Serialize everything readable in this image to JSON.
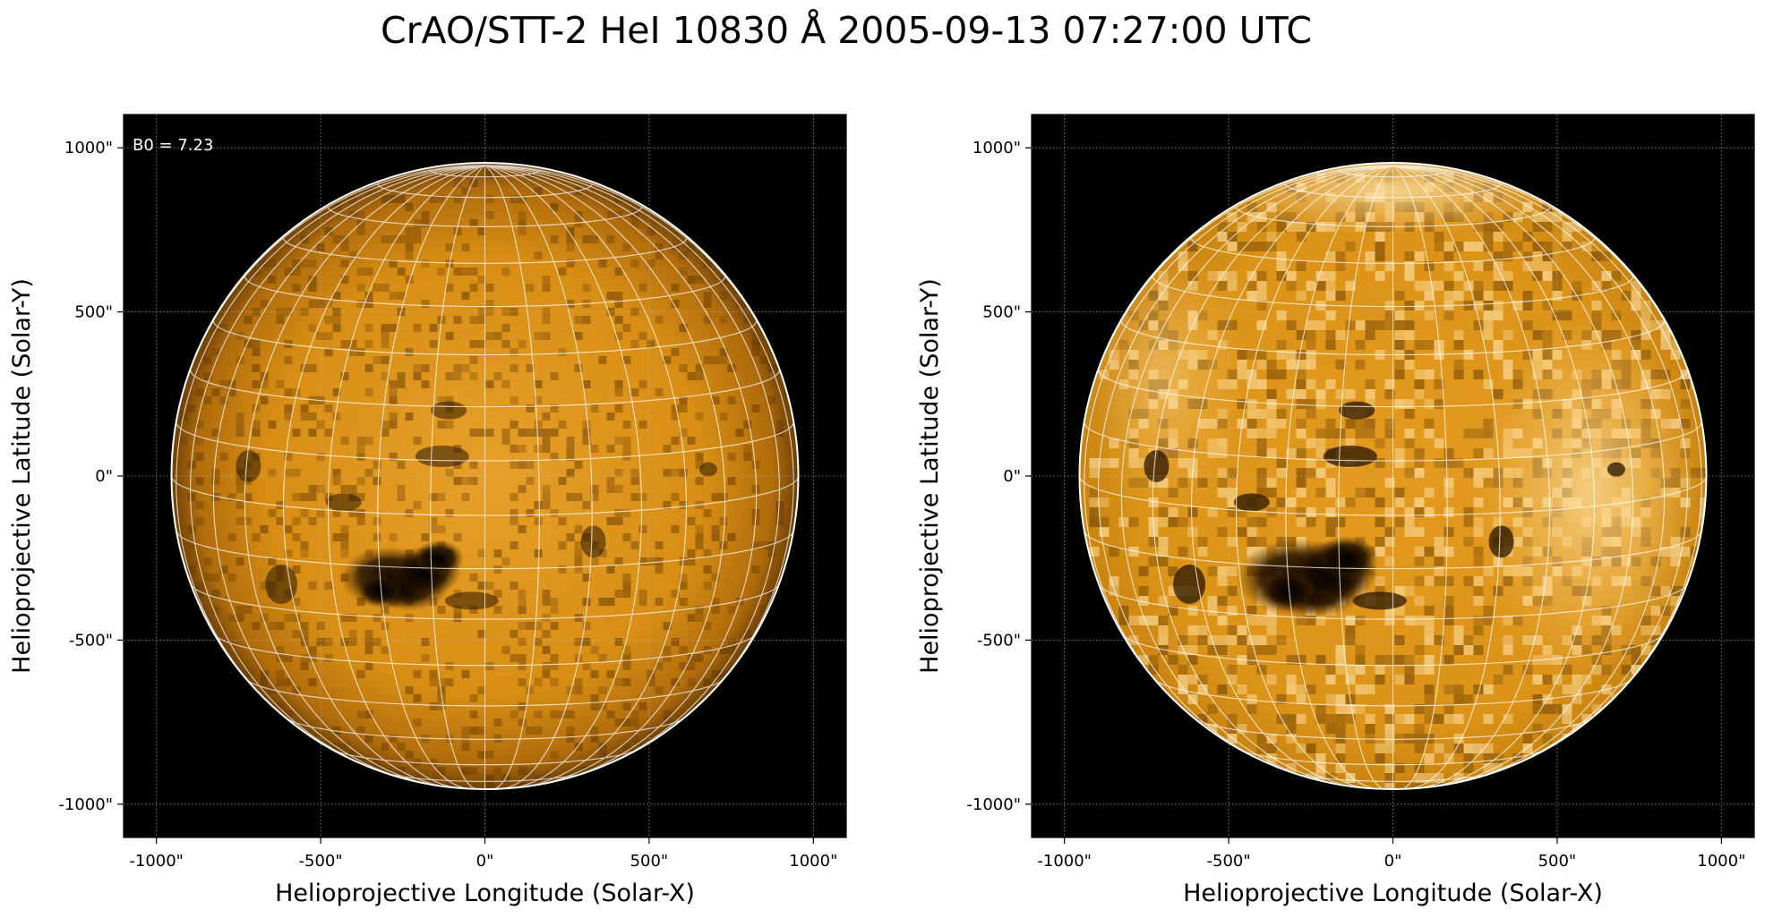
{
  "figure": {
    "title": "CrAO/STT-2 HeI 10830 Å 2005-09-13 07:27:00 UTC"
  },
  "panels": [
    {
      "id": "left",
      "xlabel": "Helioprojective Longitude (Solar-X)",
      "ylabel": "Helioprojective Latitude (Solar-Y)",
      "annotation": "B0 = 7.23",
      "xticks": [
        "-1000\"",
        "-500\"",
        "0\"",
        "500\"",
        "1000\""
      ],
      "yticks": [
        "1000\"",
        "500\"",
        "0\"",
        "-500\"",
        "-1000\""
      ]
    },
    {
      "id": "right",
      "xlabel": "Helioprojective Longitude (Solar-X)",
      "ylabel": "Helioprojective Latitude (Solar-Y)",
      "annotation": "",
      "xticks": [
        "-1000\"",
        "-500\"",
        "0\"",
        "500\"",
        "1000\""
      ],
      "yticks": [
        "1000\"",
        "500\"",
        "0\"",
        "-500\"",
        "-1000\""
      ]
    }
  ],
  "colors": {
    "background": "#000000",
    "disk_center": "#e59a1c",
    "disk_edge": "#7a4a08",
    "grid": "#ffffff",
    "limb": "#ffffff"
  },
  "image": {
    "colormap": "orange-on-black",
    "features": [
      "dark active region south-west of disk center",
      "dark filaments near equator"
    ]
  }
}
